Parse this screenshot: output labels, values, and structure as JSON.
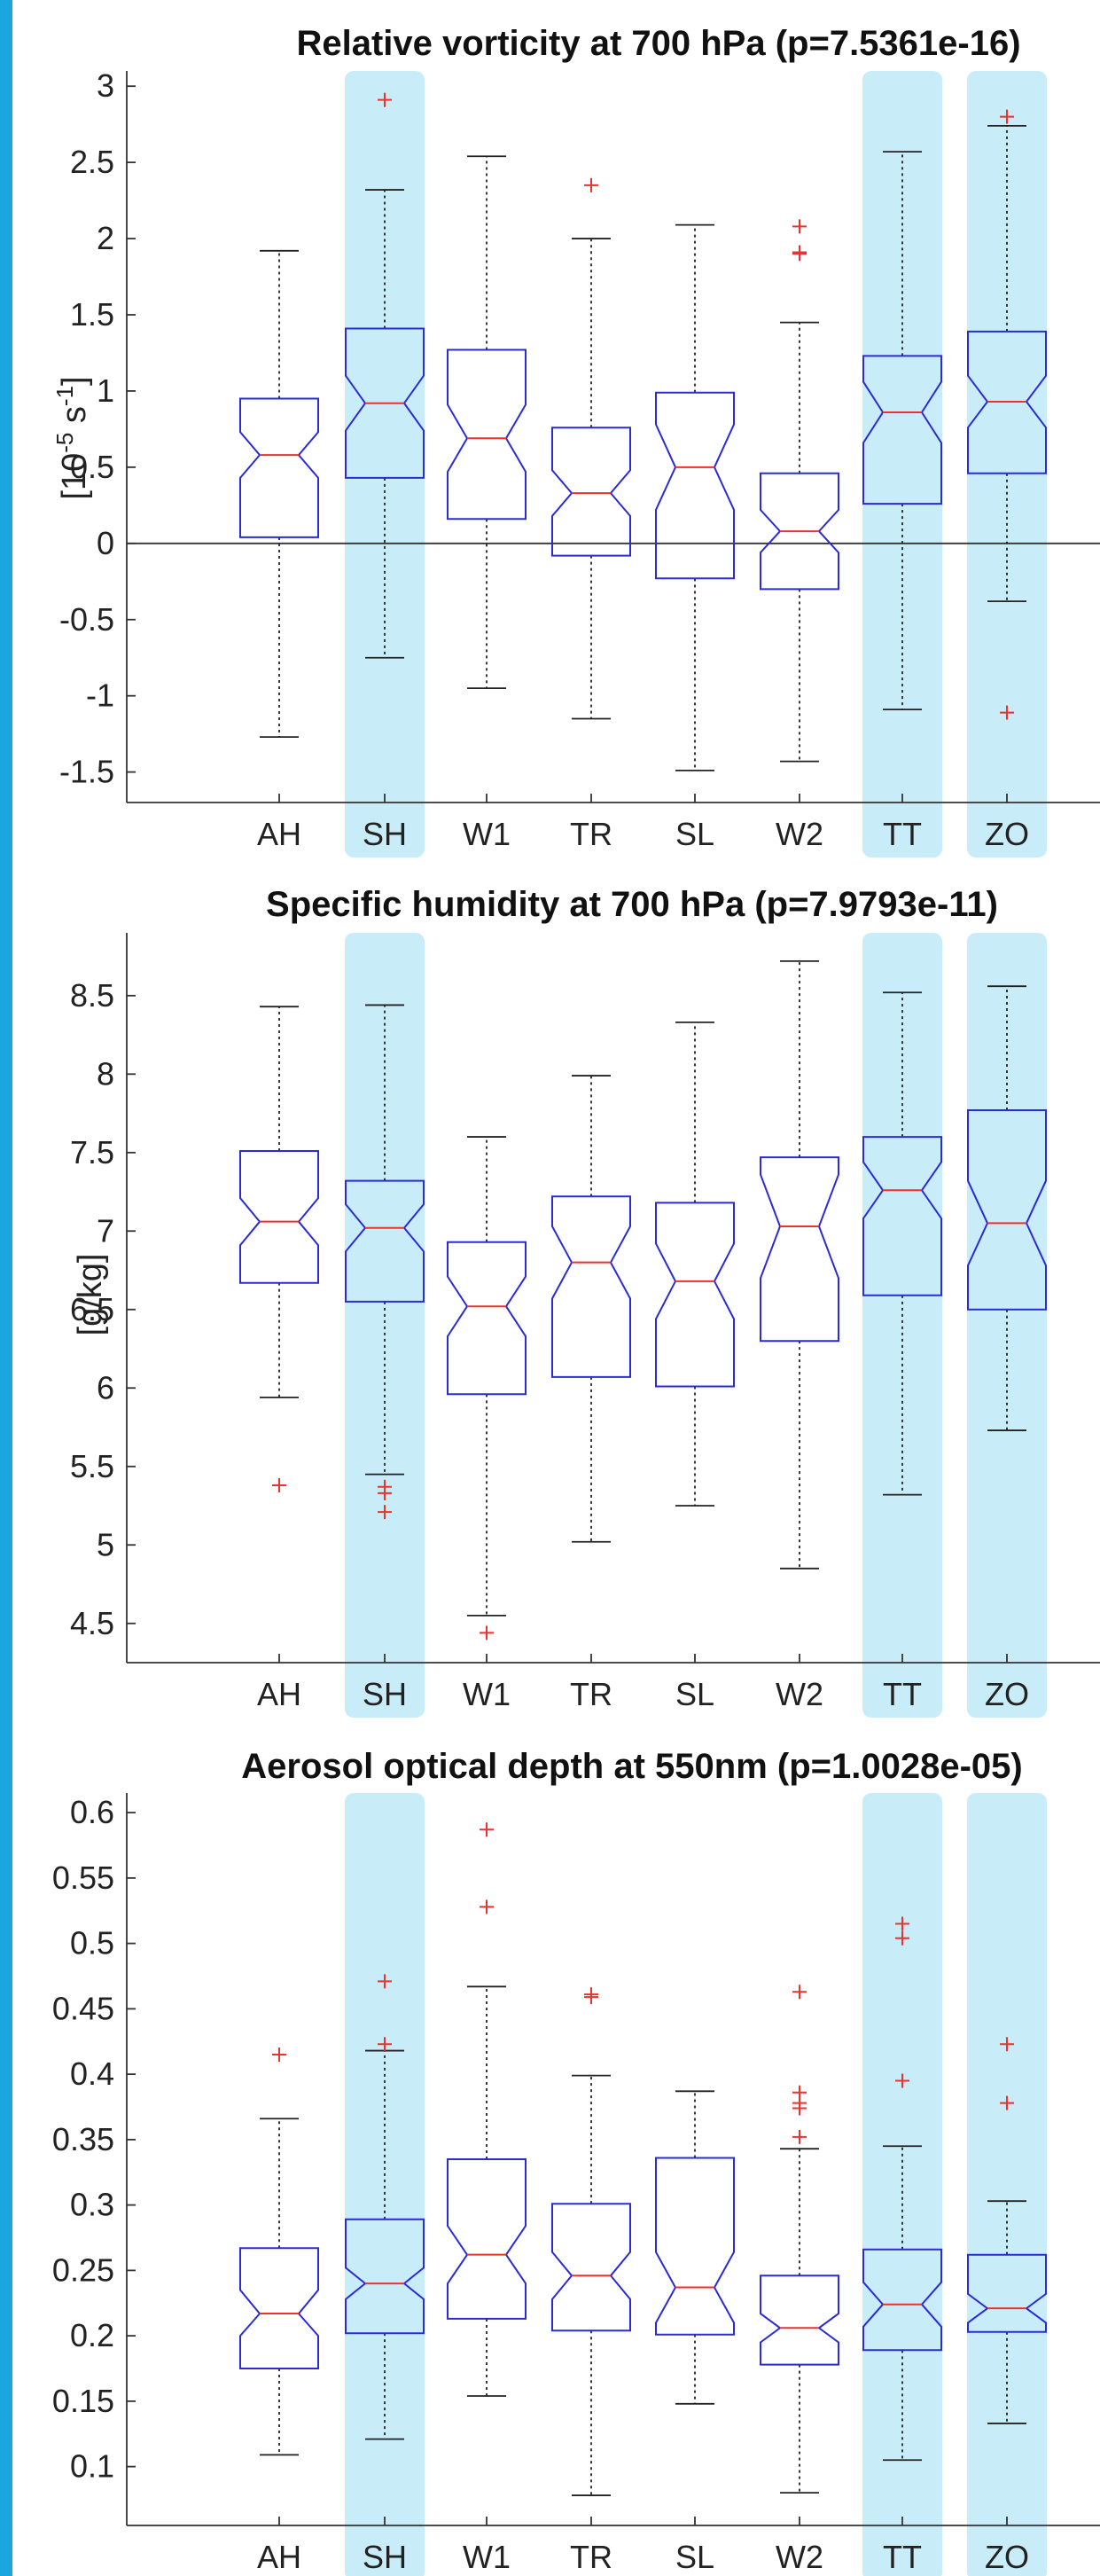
{
  "colors": {
    "highlight": "#c8ecf8",
    "box": "#2b2bd6",
    "median": "#e8332f",
    "outlier": "#e8332f",
    "whisker": "#222222",
    "frame_accent": "#1ba7de"
  },
  "chart_data": [
    {
      "type": "box",
      "title": "Relative vorticity at 700 hPa (p=7.5361e-16)",
      "ylabel_base": "[10",
      "ylabel_exp1": "-5",
      "ylabel_mid": " s",
      "ylabel_exp2": "-1",
      "ylabel_end": "]",
      "ylim": [
        -1.7,
        3.1
      ],
      "yticks": [
        -1.5,
        -1,
        -0.5,
        0,
        0.5,
        1,
        1.5,
        2,
        2.5,
        3
      ],
      "ytick_labels": [
        "-1.5",
        "-1",
        "-0.5",
        "0",
        "0.5",
        "1",
        "1.5",
        "2",
        "2.5",
        "3"
      ],
      "zero_line": true,
      "highlighted": [
        "SH",
        "TT",
        "ZO"
      ],
      "categories": [
        "AH",
        "SH",
        "W1",
        "TR",
        "SL",
        "W2",
        "TT",
        "ZO"
      ],
      "boxes": [
        {
          "whislo": -1.27,
          "q1": 0.04,
          "med": 0.58,
          "q3": 0.95,
          "whishi": 1.92,
          "notch": [
            0.43,
            0.73
          ],
          "fliers": []
        },
        {
          "whislo": -0.75,
          "q1": 0.43,
          "med": 0.92,
          "q3": 1.41,
          "whishi": 2.32,
          "notch": [
            0.74,
            1.1
          ],
          "fliers": [
            2.91
          ]
        },
        {
          "whislo": -0.95,
          "q1": 0.16,
          "med": 0.69,
          "q3": 1.27,
          "whishi": 2.54,
          "notch": [
            0.47,
            0.91
          ],
          "fliers": []
        },
        {
          "whislo": -1.15,
          "q1": -0.08,
          "med": 0.33,
          "q3": 0.76,
          "whishi": 2.0,
          "notch": [
            0.18,
            0.48
          ],
          "fliers": [
            2.35
          ]
        },
        {
          "whislo": -1.49,
          "q1": -0.23,
          "med": 0.5,
          "q3": 0.99,
          "whishi": 2.09,
          "notch": [
            0.22,
            0.78
          ],
          "fliers": []
        },
        {
          "whislo": -1.43,
          "q1": -0.3,
          "med": 0.08,
          "q3": 0.46,
          "whishi": 1.45,
          "notch": [
            -0.06,
            0.22
          ],
          "fliers": [
            1.9,
            1.91,
            2.08
          ]
        },
        {
          "whislo": -1.09,
          "q1": 0.26,
          "med": 0.86,
          "q3": 1.23,
          "whishi": 2.57,
          "notch": [
            0.66,
            1.06
          ],
          "fliers": []
        },
        {
          "whislo": -0.38,
          "q1": 0.46,
          "med": 0.93,
          "q3": 1.39,
          "whishi": 2.74,
          "notch": [
            0.76,
            1.1
          ],
          "fliers": [
            2.8,
            -1.11
          ]
        }
      ]
    },
    {
      "type": "box",
      "title": "Specific humidity at 700 hPa (p=7.9793e-11)",
      "ylabel": "[g/kg]",
      "ylim": [
        4.25,
        8.9
      ],
      "yticks": [
        4.5,
        5,
        5.5,
        6,
        6.5,
        7,
        7.5,
        8,
        8.5
      ],
      "ytick_labels": [
        "4.5",
        "5",
        "5.5",
        "6",
        "6.5",
        "7",
        "7.5",
        "8",
        "8.5"
      ],
      "zero_line": false,
      "highlighted": [
        "SH",
        "TT",
        "ZO"
      ],
      "categories": [
        "AH",
        "SH",
        "W1",
        "TR",
        "SL",
        "W2",
        "TT",
        "ZO"
      ],
      "boxes": [
        {
          "whislo": 5.94,
          "q1": 6.67,
          "med": 7.06,
          "q3": 7.51,
          "whishi": 8.43,
          "notch": [
            6.91,
            7.21
          ],
          "fliers": [
            5.38
          ]
        },
        {
          "whislo": 5.45,
          "q1": 6.55,
          "med": 7.02,
          "q3": 7.32,
          "whishi": 8.44,
          "notch": [
            6.87,
            7.17
          ],
          "fliers": [
            5.21,
            5.33,
            5.37
          ]
        },
        {
          "whislo": 4.55,
          "q1": 5.96,
          "med": 6.52,
          "q3": 6.93,
          "whishi": 7.6,
          "notch": [
            6.33,
            6.71
          ],
          "fliers": [
            4.44
          ]
        },
        {
          "whislo": 5.02,
          "q1": 6.07,
          "med": 6.8,
          "q3": 7.22,
          "whishi": 7.99,
          "notch": [
            6.57,
            7.03
          ],
          "fliers": []
        },
        {
          "whislo": 5.25,
          "q1": 6.01,
          "med": 6.68,
          "q3": 7.18,
          "whishi": 8.33,
          "notch": [
            6.44,
            6.92
          ],
          "fliers": []
        },
        {
          "whislo": 4.85,
          "q1": 6.3,
          "med": 7.03,
          "q3": 7.47,
          "whishi": 8.72,
          "notch": [
            6.7,
            7.36
          ],
          "fliers": []
        },
        {
          "whislo": 5.32,
          "q1": 6.59,
          "med": 7.26,
          "q3": 7.6,
          "whishi": 8.52,
          "notch": [
            7.08,
            7.44
          ],
          "fliers": []
        },
        {
          "whislo": 5.73,
          "q1": 6.5,
          "med": 7.05,
          "q3": 7.77,
          "whishi": 8.56,
          "notch": [
            6.78,
            7.32
          ],
          "fliers": []
        }
      ]
    },
    {
      "type": "box",
      "title": "Aerosol optical depth at 550nm (p=1.0028e-05)",
      "ylabel": "",
      "ylim": [
        0.055,
        0.615
      ],
      "yticks": [
        0.1,
        0.15,
        0.2,
        0.25,
        0.3,
        0.35,
        0.4,
        0.45,
        0.5,
        0.55,
        0.6
      ],
      "ytick_labels": [
        "0.1",
        "0.15",
        "0.2",
        "0.25",
        "0.3",
        "0.35",
        "0.4",
        "0.45",
        "0.5",
        "0.55",
        "0.6"
      ],
      "zero_line": false,
      "highlighted": [
        "SH",
        "TT",
        "ZO"
      ],
      "categories": [
        "AH",
        "SH",
        "W1",
        "TR",
        "SL",
        "W2",
        "TT",
        "ZO"
      ],
      "boxes": [
        {
          "whislo": 0.109,
          "q1": 0.175,
          "med": 0.217,
          "q3": 0.267,
          "whishi": 0.366,
          "notch": [
            0.2,
            0.235
          ],
          "fliers": [
            0.415
          ]
        },
        {
          "whislo": 0.121,
          "q1": 0.202,
          "med": 0.24,
          "q3": 0.289,
          "whishi": 0.418,
          "notch": [
            0.228,
            0.252
          ],
          "fliers": [
            0.423,
            0.471
          ]
        },
        {
          "whislo": 0.154,
          "q1": 0.213,
          "med": 0.262,
          "q3": 0.335,
          "whishi": 0.467,
          "notch": [
            0.24,
            0.284
          ],
          "fliers": [
            0.528,
            0.587
          ]
        },
        {
          "whislo": 0.078,
          "q1": 0.204,
          "med": 0.246,
          "q3": 0.301,
          "whishi": 0.399,
          "notch": [
            0.228,
            0.264
          ],
          "fliers": [
            0.459,
            0.461
          ]
        },
        {
          "whislo": 0.148,
          "q1": 0.201,
          "med": 0.237,
          "q3": 0.336,
          "whishi": 0.387,
          "notch": [
            0.21,
            0.264
          ],
          "fliers": []
        },
        {
          "whislo": 0.08,
          "q1": 0.178,
          "med": 0.206,
          "q3": 0.246,
          "whishi": 0.343,
          "notch": [
            0.195,
            0.217
          ],
          "fliers": [
            0.352,
            0.374,
            0.378,
            0.386,
            0.463
          ]
        },
        {
          "whislo": 0.105,
          "q1": 0.189,
          "med": 0.224,
          "q3": 0.266,
          "whishi": 0.345,
          "notch": [
            0.207,
            0.241
          ],
          "fliers": [
            0.395,
            0.504,
            0.515
          ]
        },
        {
          "whislo": 0.133,
          "q1": 0.203,
          "med": 0.221,
          "q3": 0.262,
          "whishi": 0.303,
          "notch": [
            0.21,
            0.232
          ],
          "fliers": [
            0.378,
            0.423
          ]
        }
      ]
    }
  ]
}
